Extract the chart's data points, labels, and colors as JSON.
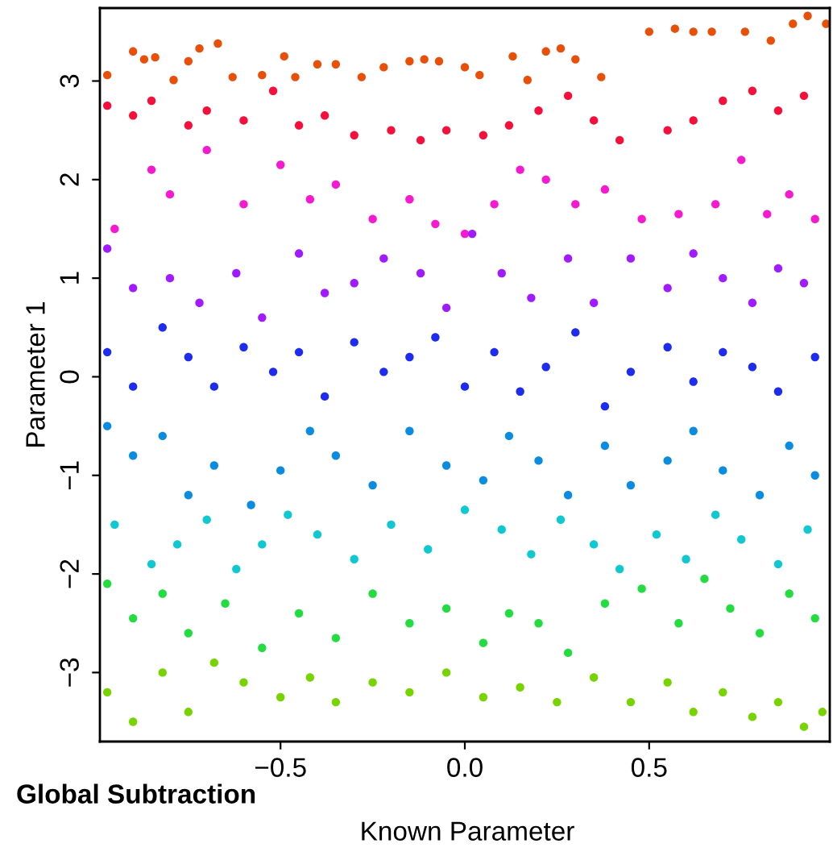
{
  "chart_data": {
    "type": "scatter",
    "title": "Global Subtraction",
    "xlabel": "Known Parameter",
    "ylabel": "Parameter 1",
    "xlim": [
      -0.99,
      0.99
    ],
    "ylim": [
      -3.7,
      3.74
    ],
    "xticks": [
      {
        "value": -0.5,
        "label": "−0.5"
      },
      {
        "value": 0,
        "label": "0.0"
      },
      0.5
    ],
    "yticks": [
      {
        "value": -3,
        "label": "−3"
      },
      {
        "value": -2,
        "label": "−2"
      },
      {
        "value": -1,
        "label": "−1"
      },
      0,
      1,
      2,
      3
    ],
    "grid": false,
    "legend": false,
    "marker": "circle",
    "series": [
      {
        "color": "#e8500a",
        "x": [
          -0.97,
          -0.9,
          -0.87,
          -0.84,
          -0.79,
          -0.75,
          -0.72,
          -0.67,
          -0.63,
          -0.55,
          -0.49,
          -0.46,
          -0.4,
          -0.35,
          -0.28,
          -0.22,
          -0.15,
          -0.11,
          -0.07,
          0.0,
          0.04,
          0.13,
          0.17,
          0.22,
          0.26,
          0.3,
          0.37,
          0.5,
          0.57,
          0.62,
          0.67,
          0.76,
          0.83,
          0.89,
          0.93,
          0.98
        ],
        "values": [
          3.06,
          3.3,
          3.22,
          3.24,
          3.01,
          3.2,
          3.33,
          3.38,
          3.04,
          3.06,
          3.25,
          3.04,
          3.17,
          3.17,
          3.04,
          3.14,
          3.2,
          3.22,
          3.2,
          3.14,
          3.06,
          3.25,
          3.01,
          3.3,
          3.33,
          3.22,
          3.04,
          3.5,
          3.53,
          3.5,
          3.5,
          3.5,
          3.41,
          3.58,
          3.66,
          3.58
        ]
      },
      {
        "color": "#f5103c",
        "x": [
          -0.97,
          -0.9,
          -0.85,
          -0.75,
          -0.7,
          -0.6,
          -0.52,
          -0.45,
          -0.38,
          -0.3,
          -0.2,
          -0.12,
          -0.05,
          0.05,
          0.12,
          0.2,
          0.28,
          0.35,
          0.42,
          0.55,
          0.62,
          0.7,
          0.78,
          0.85,
          0.92
        ],
        "values": [
          2.75,
          2.65,
          2.8,
          2.55,
          2.7,
          2.6,
          2.9,
          2.55,
          2.65,
          2.45,
          2.5,
          2.4,
          2.5,
          2.45,
          2.55,
          2.7,
          2.85,
          2.6,
          2.4,
          2.5,
          2.6,
          2.8,
          2.9,
          2.7,
          2.85
        ]
      },
      {
        "color": "#f51ad0",
        "x": [
          -0.95,
          -0.85,
          -0.8,
          -0.7,
          -0.6,
          -0.5,
          -0.42,
          -0.35,
          -0.25,
          -0.15,
          -0.08,
          0.0,
          0.08,
          0.15,
          0.22,
          0.3,
          0.38,
          0.48,
          0.58,
          0.68,
          0.75,
          0.82,
          0.88,
          0.95
        ],
        "values": [
          1.5,
          2.1,
          1.85,
          2.3,
          1.75,
          2.15,
          1.8,
          1.95,
          1.6,
          1.8,
          1.55,
          1.45,
          1.75,
          2.1,
          2.0,
          1.75,
          1.9,
          1.6,
          1.65,
          1.75,
          2.2,
          1.65,
          1.85,
          1.6
        ]
      },
      {
        "color": "#a01cff",
        "x": [
          -0.97,
          -0.9,
          -0.8,
          -0.72,
          -0.62,
          -0.55,
          -0.45,
          -0.38,
          -0.3,
          -0.22,
          -0.12,
          -0.05,
          0.02,
          0.1,
          0.18,
          0.28,
          0.35,
          0.45,
          0.55,
          0.62,
          0.7,
          0.78,
          0.85,
          0.92
        ],
        "values": [
          1.3,
          0.9,
          1.0,
          0.75,
          1.05,
          0.6,
          1.25,
          0.85,
          0.95,
          1.2,
          1.05,
          0.7,
          1.45,
          1.05,
          0.8,
          1.2,
          0.75,
          1.2,
          0.9,
          1.25,
          1.0,
          0.75,
          1.1,
          0.95
        ]
      },
      {
        "color": "#1e2cf0",
        "x": [
          -0.97,
          -0.9,
          -0.82,
          -0.75,
          -0.68,
          -0.6,
          -0.52,
          -0.45,
          -0.38,
          -0.3,
          -0.22,
          -0.15,
          -0.08,
          0.0,
          0.08,
          0.15,
          0.22,
          0.3,
          0.38,
          0.45,
          0.55,
          0.62,
          0.7,
          0.78,
          0.85,
          0.95
        ],
        "values": [
          0.25,
          -0.1,
          0.5,
          0.2,
          -0.1,
          0.3,
          0.05,
          0.25,
          -0.2,
          0.35,
          0.05,
          0.2,
          0.4,
          -0.1,
          0.25,
          -0.15,
          0.1,
          0.45,
          -0.3,
          0.05,
          0.3,
          -0.05,
          0.25,
          0.1,
          -0.15,
          0.2
        ]
      },
      {
        "color": "#0a8ce0",
        "x": [
          -0.97,
          -0.9,
          -0.82,
          -0.75,
          -0.68,
          -0.58,
          -0.5,
          -0.42,
          -0.35,
          -0.25,
          -0.15,
          -0.05,
          0.05,
          0.12,
          0.2,
          0.28,
          0.38,
          0.45,
          0.55,
          0.62,
          0.7,
          0.8,
          0.88,
          0.95
        ],
        "values": [
          -0.5,
          -0.8,
          -0.6,
          -1.2,
          -0.9,
          -1.3,
          -0.95,
          -0.55,
          -0.8,
          -1.1,
          -0.55,
          -0.9,
          -1.05,
          -0.6,
          -0.85,
          -1.2,
          -0.7,
          -1.1,
          -0.85,
          -0.55,
          -0.95,
          -1.2,
          -0.7,
          -1.0
        ]
      },
      {
        "color": "#10c8d0",
        "x": [
          -0.95,
          -0.85,
          -0.78,
          -0.7,
          -0.62,
          -0.55,
          -0.48,
          -0.4,
          -0.3,
          -0.2,
          -0.1,
          0.0,
          0.1,
          0.18,
          0.26,
          0.35,
          0.42,
          0.52,
          0.6,
          0.68,
          0.75,
          0.85,
          0.93
        ],
        "values": [
          -1.5,
          -1.9,
          -1.7,
          -1.45,
          -1.95,
          -1.7,
          -1.4,
          -1.6,
          -1.85,
          -1.5,
          -1.75,
          -1.35,
          -1.55,
          -1.8,
          -1.45,
          -1.7,
          -1.95,
          -1.6,
          -1.85,
          -1.4,
          -1.65,
          -1.9,
          -1.55
        ]
      },
      {
        "color": "#22dc40",
        "x": [
          -0.97,
          -0.9,
          -0.82,
          -0.75,
          -0.65,
          -0.55,
          -0.45,
          -0.35,
          -0.25,
          -0.15,
          -0.05,
          0.05,
          0.12,
          0.2,
          0.28,
          0.38,
          0.48,
          0.58,
          0.65,
          0.72,
          0.8,
          0.88,
          0.95
        ],
        "values": [
          -2.1,
          -2.45,
          -2.2,
          -2.6,
          -2.3,
          -2.75,
          -2.4,
          -2.65,
          -2.2,
          -2.5,
          -2.35,
          -2.7,
          -2.4,
          -2.5,
          -2.8,
          -2.3,
          -2.15,
          -2.5,
          -2.05,
          -2.35,
          -2.6,
          -2.2,
          -2.45
        ]
      },
      {
        "color": "#78d400",
        "x": [
          -0.97,
          -0.9,
          -0.82,
          -0.75,
          -0.68,
          -0.6,
          -0.5,
          -0.42,
          -0.35,
          -0.25,
          -0.15,
          -0.05,
          0.05,
          0.15,
          0.25,
          0.35,
          0.45,
          0.55,
          0.62,
          0.7,
          0.78,
          0.85,
          0.92,
          0.97
        ],
        "values": [
          -3.2,
          -3.5,
          -3.0,
          -3.4,
          -2.9,
          -3.1,
          -3.25,
          -3.05,
          -3.3,
          -3.1,
          -3.2,
          -3.0,
          -3.25,
          -3.15,
          -3.3,
          -3.05,
          -3.3,
          -3.1,
          -3.4,
          -3.2,
          -3.45,
          -3.3,
          -3.55,
          -3.4
        ]
      }
    ]
  }
}
